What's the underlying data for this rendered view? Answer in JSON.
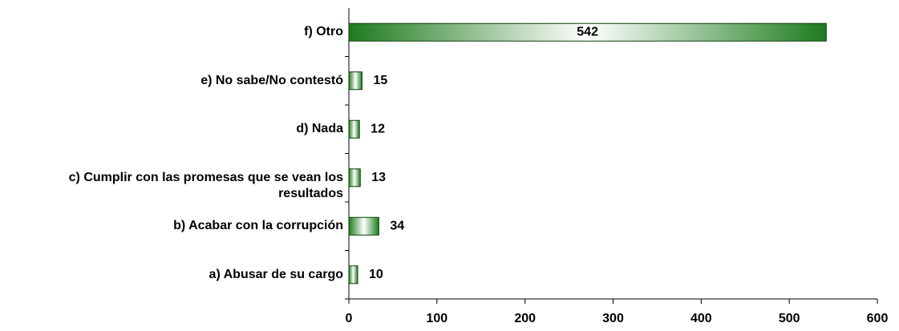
{
  "chart_data": {
    "type": "barh",
    "categories": [
      "a) Abusar de su cargo",
      "b) Acabar con la corrupción",
      "c) Cumplir con las promesas que se vean los resultados",
      "d) Nada",
      "e) No sabe/No contestó",
      "f) Otro"
    ],
    "values": [
      10,
      34,
      13,
      12,
      15,
      542
    ],
    "color": "#1e7b1e",
    "xlim": [
      0,
      600
    ],
    "xticks": [
      0,
      100,
      200,
      300,
      400,
      500,
      600
    ]
  }
}
